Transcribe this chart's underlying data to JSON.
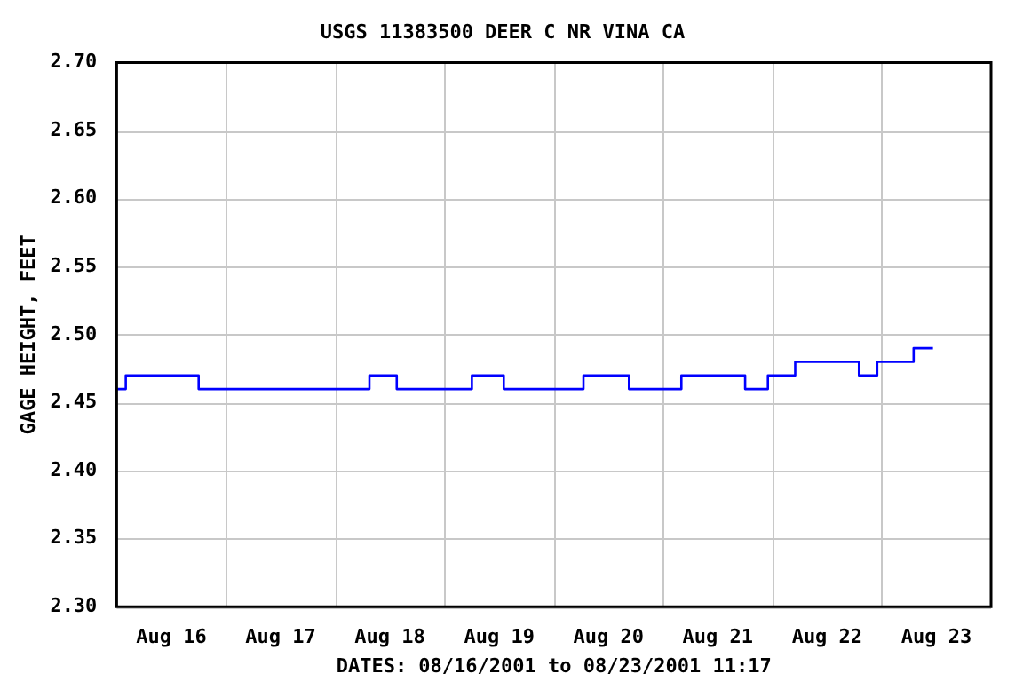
{
  "chart_data": {
    "type": "step",
    "title": "USGS 11383500 DEER C NR VINA CA",
    "xlabel": "DATES: 08/16/2001 to 08/23/2001 11:17",
    "ylabel": "GAGE HEIGHT, FEET",
    "x": [
      "2001-08-16T00:00",
      "2001-08-16T02:00",
      "2001-08-16T18:00",
      "2001-08-18T07:30",
      "2001-08-18T13:30",
      "2001-08-19T06:00",
      "2001-08-19T13:00",
      "2001-08-20T06:30",
      "2001-08-20T16:30",
      "2001-08-21T04:00",
      "2001-08-21T18:00",
      "2001-08-21T23:00",
      "2001-08-22T05:00",
      "2001-08-22T19:00",
      "2001-08-22T23:00",
      "2001-08-23T07:00",
      "2001-08-23T11:15"
    ],
    "series": [
      {
        "color": "#0000ff",
        "values": [
          2.46,
          2.47,
          2.46,
          2.47,
          2.46,
          2.47,
          2.46,
          2.47,
          2.46,
          2.47,
          2.46,
          2.47,
          2.48,
          2.47,
          2.48,
          2.49,
          2.49
        ]
      }
    ],
    "xlim": [
      "2001-08-16T00:00",
      "2001-08-24T00:00"
    ],
    "xticks": [
      {
        "value": "2001-08-16T12:00",
        "label": "Aug 16"
      },
      {
        "value": "2001-08-17T12:00",
        "label": "Aug 17"
      },
      {
        "value": "2001-08-18T12:00",
        "label": "Aug 18"
      },
      {
        "value": "2001-08-19T12:00",
        "label": "Aug 19"
      },
      {
        "value": "2001-08-20T12:00",
        "label": "Aug 20"
      },
      {
        "value": "2001-08-21T12:00",
        "label": "Aug 21"
      },
      {
        "value": "2001-08-22T12:00",
        "label": "Aug 22"
      },
      {
        "value": "2001-08-23T12:00",
        "label": "Aug 23"
      }
    ],
    "ylim": [
      2.3,
      2.7
    ],
    "yticks": [
      {
        "value": 2.3,
        "label": "2.30"
      },
      {
        "value": 2.35,
        "label": "2.35"
      },
      {
        "value": 2.4,
        "label": "2.40"
      },
      {
        "value": 2.45,
        "label": "2.45"
      },
      {
        "value": 2.5,
        "label": "2.50"
      },
      {
        "value": 2.55,
        "label": "2.55"
      },
      {
        "value": 2.6,
        "label": "2.60"
      },
      {
        "value": 2.65,
        "label": "2.65"
      },
      {
        "value": 2.7,
        "label": "2.70"
      }
    ],
    "grid": true,
    "legend": false,
    "marker": "none",
    "line_style": "solid"
  }
}
